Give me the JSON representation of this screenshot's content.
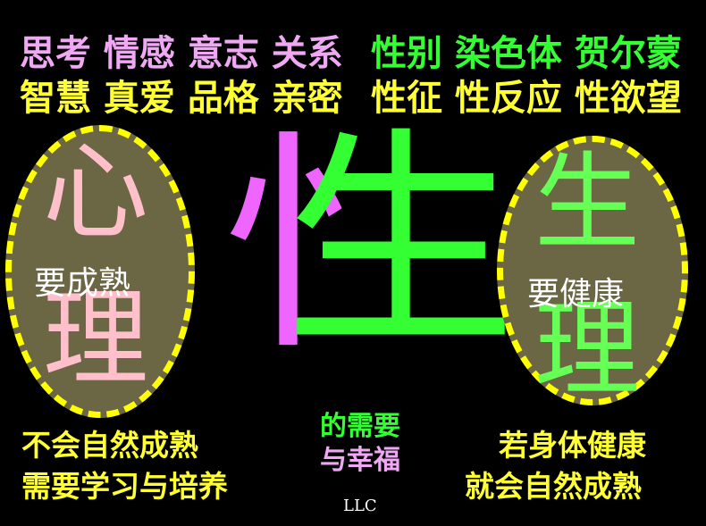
{
  "top": {
    "left_row1": "思考 情感 意志 关系",
    "left_row2": "智慧 真爱 品格 亲密",
    "right_row1": "性别 染色体 贺尔蒙",
    "right_row2": "性征 性反应 性欲望"
  },
  "left_oval": {
    "char_top": "心",
    "char_bottom": "理",
    "label": "要成熟"
  },
  "center": {
    "left_radical": "忄",
    "right_part": "生"
  },
  "right_oval": {
    "char_top": "生",
    "char_bottom": "理",
    "label": "要健康"
  },
  "bottom": {
    "left_line1": "不会自然成熟",
    "left_line2": "需要学习与培养",
    "center_line1": "的需要",
    "center_line2": "与幸福",
    "right_line1": "若身体健康",
    "right_line2": "就会自然成熟",
    "signature": "LLC"
  },
  "colors": {
    "background": "#000000",
    "pink": "#f0a8f5",
    "yellow": "#ffff33",
    "green": "#33ff33",
    "oval_fill": "#6b6643",
    "oval_dash": "#ffff00"
  }
}
